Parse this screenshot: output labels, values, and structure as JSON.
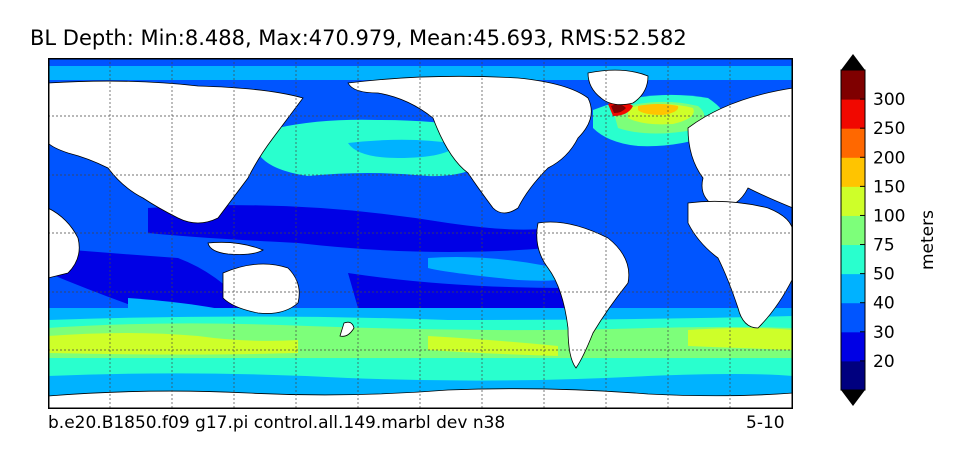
{
  "title": "BL Depth: Min:8.488, Max:470.979, Mean:45.693, RMS:52.582",
  "subtitle_left": "b.e20.B1850.f09 g17.pi control.all.149.marbl dev n38",
  "subtitle_right": "5-10",
  "colorbar": {
    "unit": "meters",
    "levels": [
      "20",
      "30",
      "40",
      "50",
      "75",
      "100",
      "150",
      "200",
      "250",
      "300"
    ],
    "colors": [
      "#00007f",
      "#0000e5",
      "#0055ff",
      "#00b2ff",
      "#29ffce",
      "#7dff7a",
      "#ceff29",
      "#ffc400",
      "#ff6800",
      "#f10800",
      "#7f0000"
    ]
  },
  "map": {
    "grid_lines": true,
    "ocean_base_color": "#0055ff",
    "land_color": "#ffffff"
  }
}
